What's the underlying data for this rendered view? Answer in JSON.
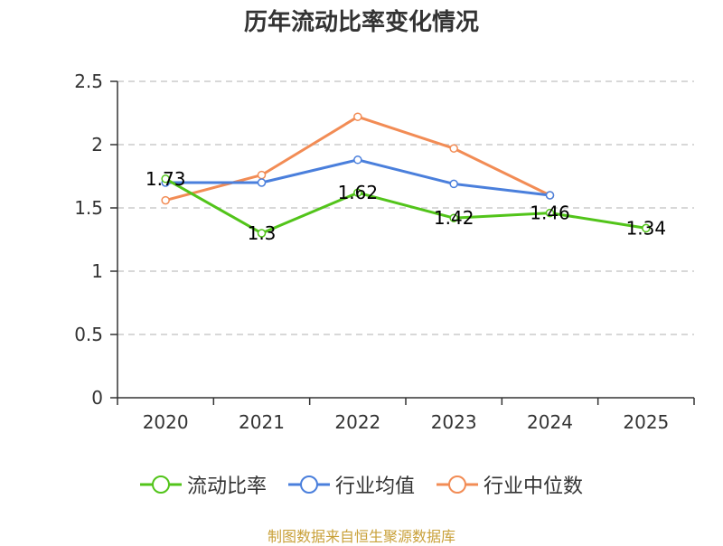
{
  "chart_data": {
    "type": "line",
    "title": "历年流动比率变化情况",
    "categories": [
      "2020",
      "2021",
      "2022",
      "2023",
      "2024",
      "2025"
    ],
    "ylim": [
      0,
      2.5
    ],
    "yticks": [
      "0",
      "0.5",
      "1",
      "1.5",
      "2",
      "2.5"
    ],
    "series": [
      {
        "name": "流动比率",
        "color": "#52c41a",
        "values": [
          1.73,
          1.3,
          1.62,
          1.42,
          1.46,
          1.34
        ],
        "labels": [
          "1.73",
          "1.3",
          "1.62",
          "1.42",
          "1.46",
          "1.34"
        ]
      },
      {
        "name": "行业均值",
        "color": "#4a7fdc",
        "values": [
          1.7,
          1.7,
          1.88,
          1.69,
          1.6,
          null
        ]
      },
      {
        "name": "行业中位数",
        "color": "#f28c55",
        "values": [
          1.56,
          1.76,
          2.22,
          1.97,
          1.6,
          null
        ]
      }
    ],
    "grid": true,
    "legend_position": "bottom"
  },
  "footer": {
    "source": "制图数据来自恒生聚源数据库"
  }
}
